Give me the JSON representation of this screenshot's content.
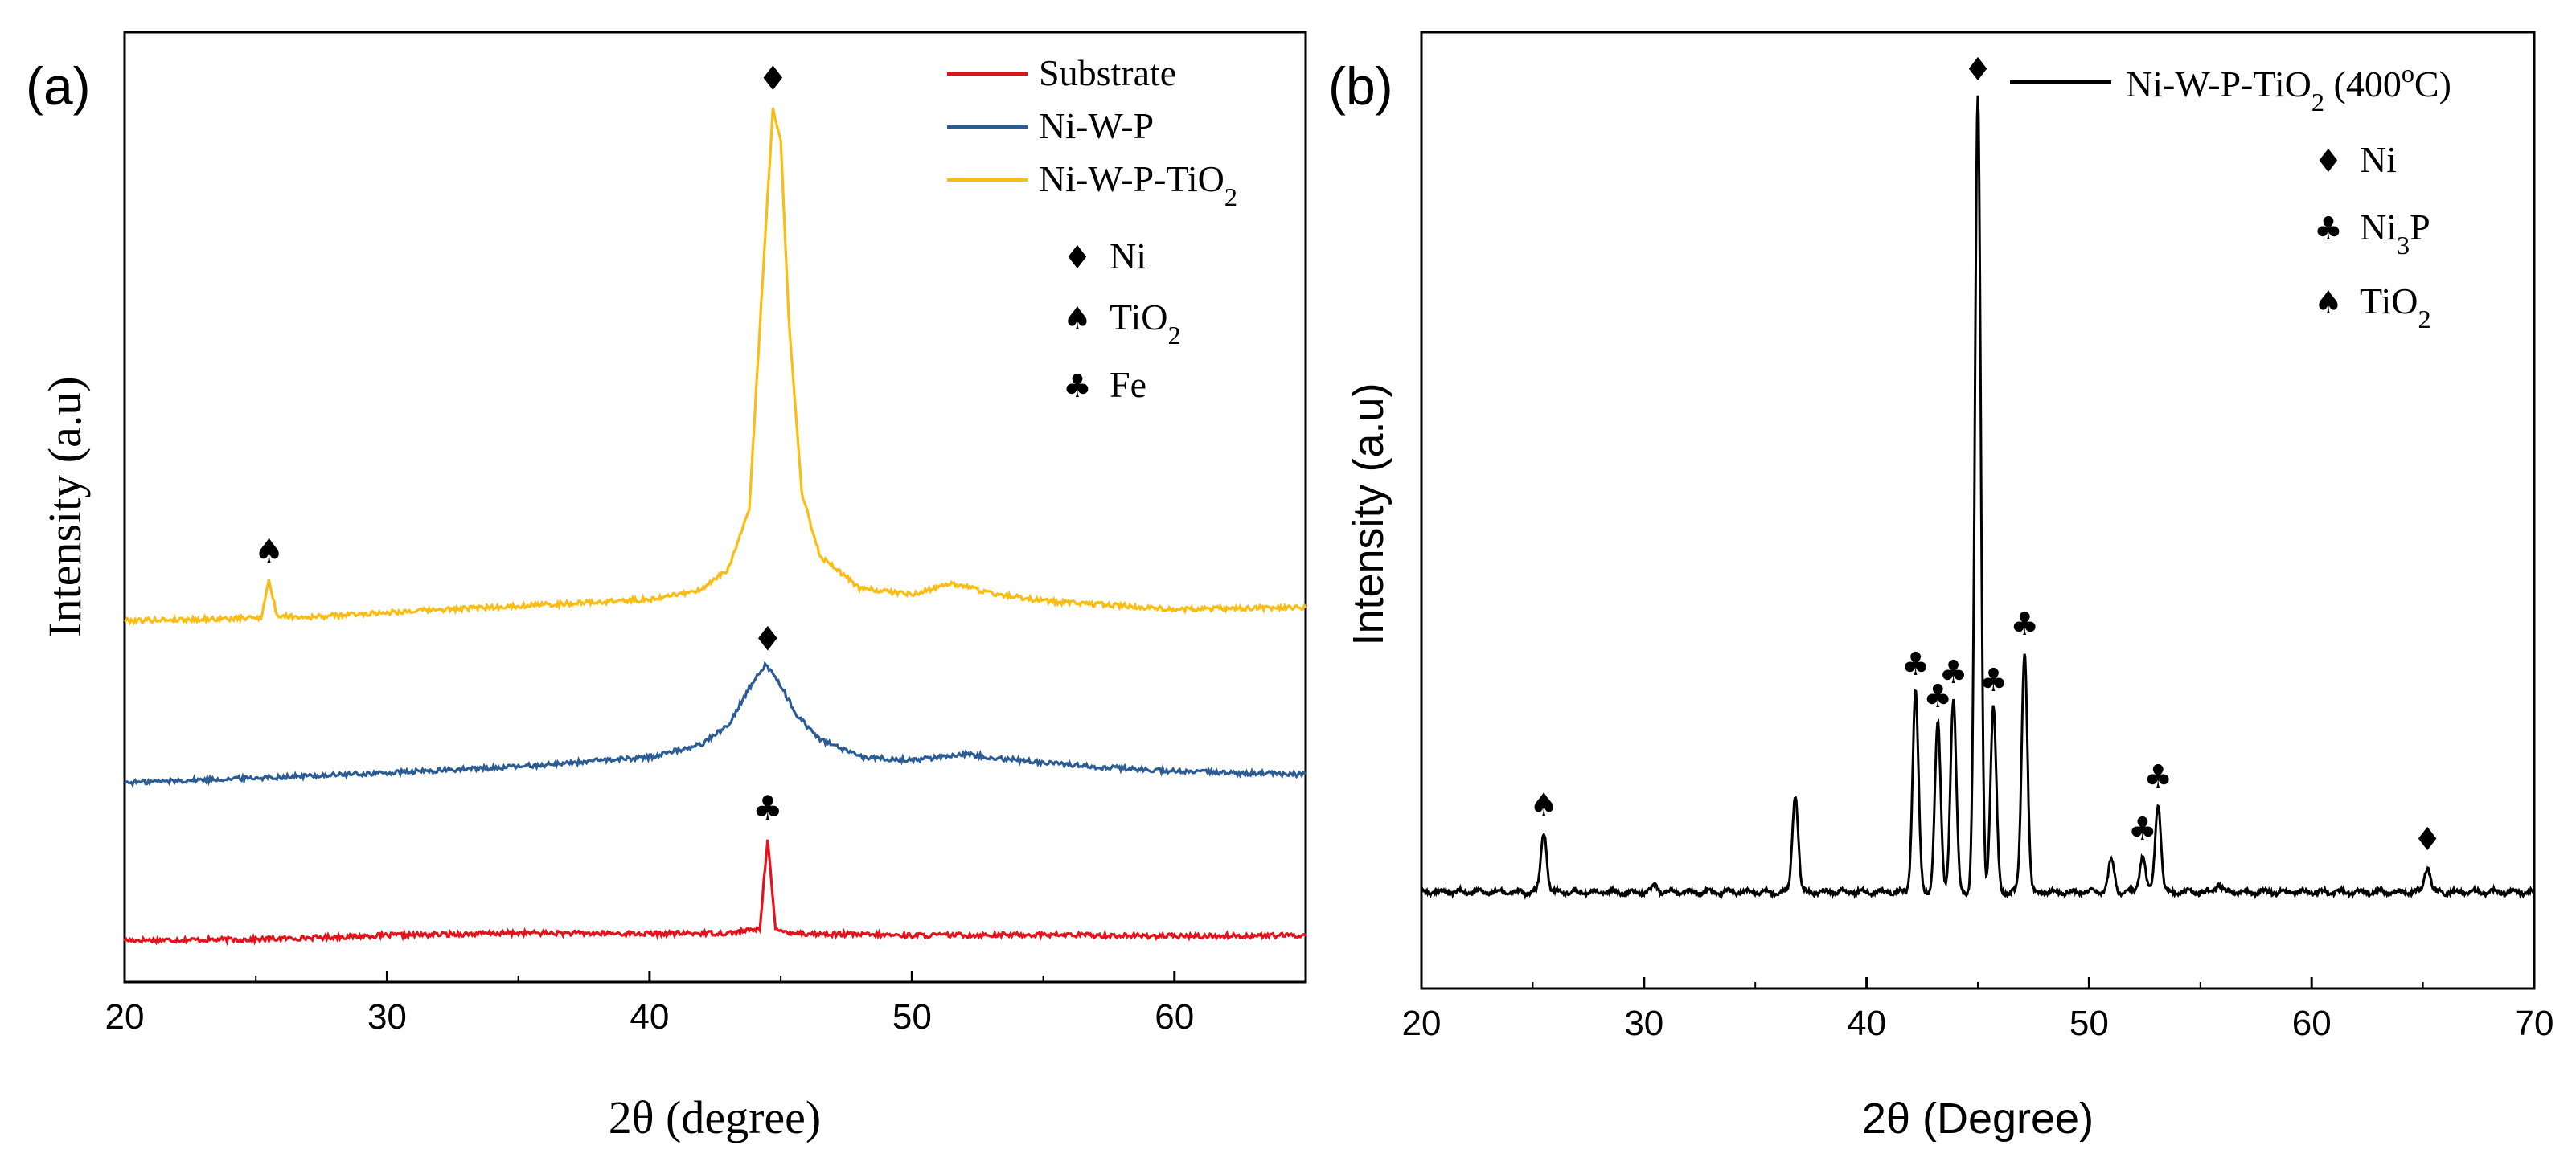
{
  "figure": {
    "panel_a_label": "(a)",
    "panel_b_label": "(b)"
  },
  "chart_data": [
    {
      "type": "line",
      "panel": "(a)",
      "title": "",
      "xlabel": "2θ (degree)",
      "ylabel": "Intensity (a.u)",
      "xlim": [
        20,
        65
      ],
      "xticks": [
        20,
        30,
        40,
        50,
        60
      ],
      "y_ticks_shown": false,
      "legend_position": "top-right",
      "series": [
        {
          "name": "Substrate",
          "color": "#e3121b",
          "offset": 0,
          "baseline": 10,
          "points": [
            [
              20,
              0
            ],
            [
              25,
              1
            ],
            [
              30,
              6
            ],
            [
              35,
              9
            ],
            [
              40,
              8
            ],
            [
              43,
              9
            ],
            [
              44.2,
              14
            ],
            [
              44.5,
              128
            ],
            [
              44.8,
              12
            ],
            [
              46,
              8
            ],
            [
              50,
              6
            ],
            [
              55,
              7
            ],
            [
              60,
              5
            ],
            [
              65,
              6
            ]
          ]
        },
        {
          "name": "Ni-W-P",
          "color": "#2c5c94",
          "offset": 196,
          "baseline": 10,
          "points": [
            [
              20,
              0
            ],
            [
              25,
              6
            ],
            [
              30,
              12
            ],
            [
              35,
              20
            ],
            [
              40,
              32
            ],
            [
              42,
              48
            ],
            [
              43,
              72
            ],
            [
              43.8,
              118
            ],
            [
              44.4,
              146
            ],
            [
              44.9,
              128
            ],
            [
              45.6,
              84
            ],
            [
              46.5,
              54
            ],
            [
              48,
              32
            ],
            [
              50,
              28
            ],
            [
              52,
              36
            ],
            [
              54,
              28
            ],
            [
              57,
              20
            ],
            [
              60,
              14
            ],
            [
              65,
              10
            ]
          ]
        },
        {
          "name": "Ni-W-P-TiO2",
          "color": "#fbbd14",
          "offset": 396,
          "baseline": 10,
          "points": [
            [
              20,
              2
            ],
            [
              24,
              4
            ],
            [
              25.2,
              6
            ],
            [
              25.5,
              52
            ],
            [
              25.8,
              8
            ],
            [
              27,
              6
            ],
            [
              30,
              12
            ],
            [
              35,
              20
            ],
            [
              40,
              28
            ],
            [
              42,
              40
            ],
            [
              43,
              66
            ],
            [
              43.8,
              140
            ],
            [
              44.3,
              420
            ],
            [
              44.7,
              640
            ],
            [
              45,
              600
            ],
            [
              45.3,
              380
            ],
            [
              45.8,
              160
            ],
            [
              46.5,
              82
            ],
            [
              48,
              42
            ],
            [
              50,
              34
            ],
            [
              51.5,
              48
            ],
            [
              53,
              36
            ],
            [
              55,
              26
            ],
            [
              60,
              16
            ],
            [
              65,
              18
            ]
          ]
        }
      ],
      "legend_markers": [
        {
          "symbol": "♦",
          "name": "Ni"
        },
        {
          "symbol": "♠",
          "name": "TiO2"
        },
        {
          "symbol": "♣",
          "name": "Fe"
        }
      ],
      "annotations": [
        {
          "symbol": "♦",
          "x": 44.7,
          "on_series": "Ni-W-P-TiO2"
        },
        {
          "symbol": "♠",
          "x": 25.5,
          "on_series": "Ni-W-P-TiO2"
        },
        {
          "symbol": "♦",
          "x": 44.5,
          "on_series": "Ni-W-P"
        },
        {
          "symbol": "♣",
          "x": 44.5,
          "on_series": "Substrate"
        }
      ]
    },
    {
      "type": "line",
      "panel": "(b)",
      "title": "",
      "xlabel": "2θ (Degree)",
      "ylabel": "Intensity (a.u)",
      "xlim": [
        20,
        70
      ],
      "xticks": [
        20,
        30,
        40,
        50,
        60,
        70
      ],
      "y_ticks_shown": false,
      "legend_position": "top-right",
      "series": [
        {
          "name": "Ni-W-P-TiO2 (400°C)",
          "color": "#000000",
          "baseline": 120,
          "peaks": [
            [
              25.5,
              75
            ],
            [
              30.5,
              8
            ],
            [
              36.8,
              122
            ],
            [
              42.2,
              250
            ],
            [
              43.2,
              210
            ],
            [
              43.9,
              240
            ],
            [
              45.0,
              990
            ],
            [
              45.7,
              230
            ],
            [
              47.1,
              300
            ],
            [
              51.0,
              40
            ],
            [
              52.4,
              45
            ],
            [
              53.1,
              110
            ],
            [
              55.8,
              10
            ],
            [
              65.2,
              32
            ]
          ]
        }
      ],
      "legend_markers": [
        {
          "symbol": "♦",
          "name": "Ni"
        },
        {
          "symbol": "♣",
          "name": "Ni3P"
        },
        {
          "symbol": "♠",
          "name": "TiO2"
        }
      ],
      "annotations": [
        {
          "symbol": "♦",
          "x": 45.0
        },
        {
          "symbol": "♠",
          "x": 25.5
        },
        {
          "symbol": "♣",
          "x": 42.2
        },
        {
          "symbol": "♣",
          "x": 43.2
        },
        {
          "symbol": "♣",
          "x": 43.9
        },
        {
          "symbol": "♣",
          "x": 45.7
        },
        {
          "symbol": "♣",
          "x": 47.1
        },
        {
          "symbol": "♣",
          "x": 52.4
        },
        {
          "symbol": "♣",
          "x": 53.1
        },
        {
          "symbol": "♦",
          "x": 65.2
        }
      ]
    }
  ]
}
